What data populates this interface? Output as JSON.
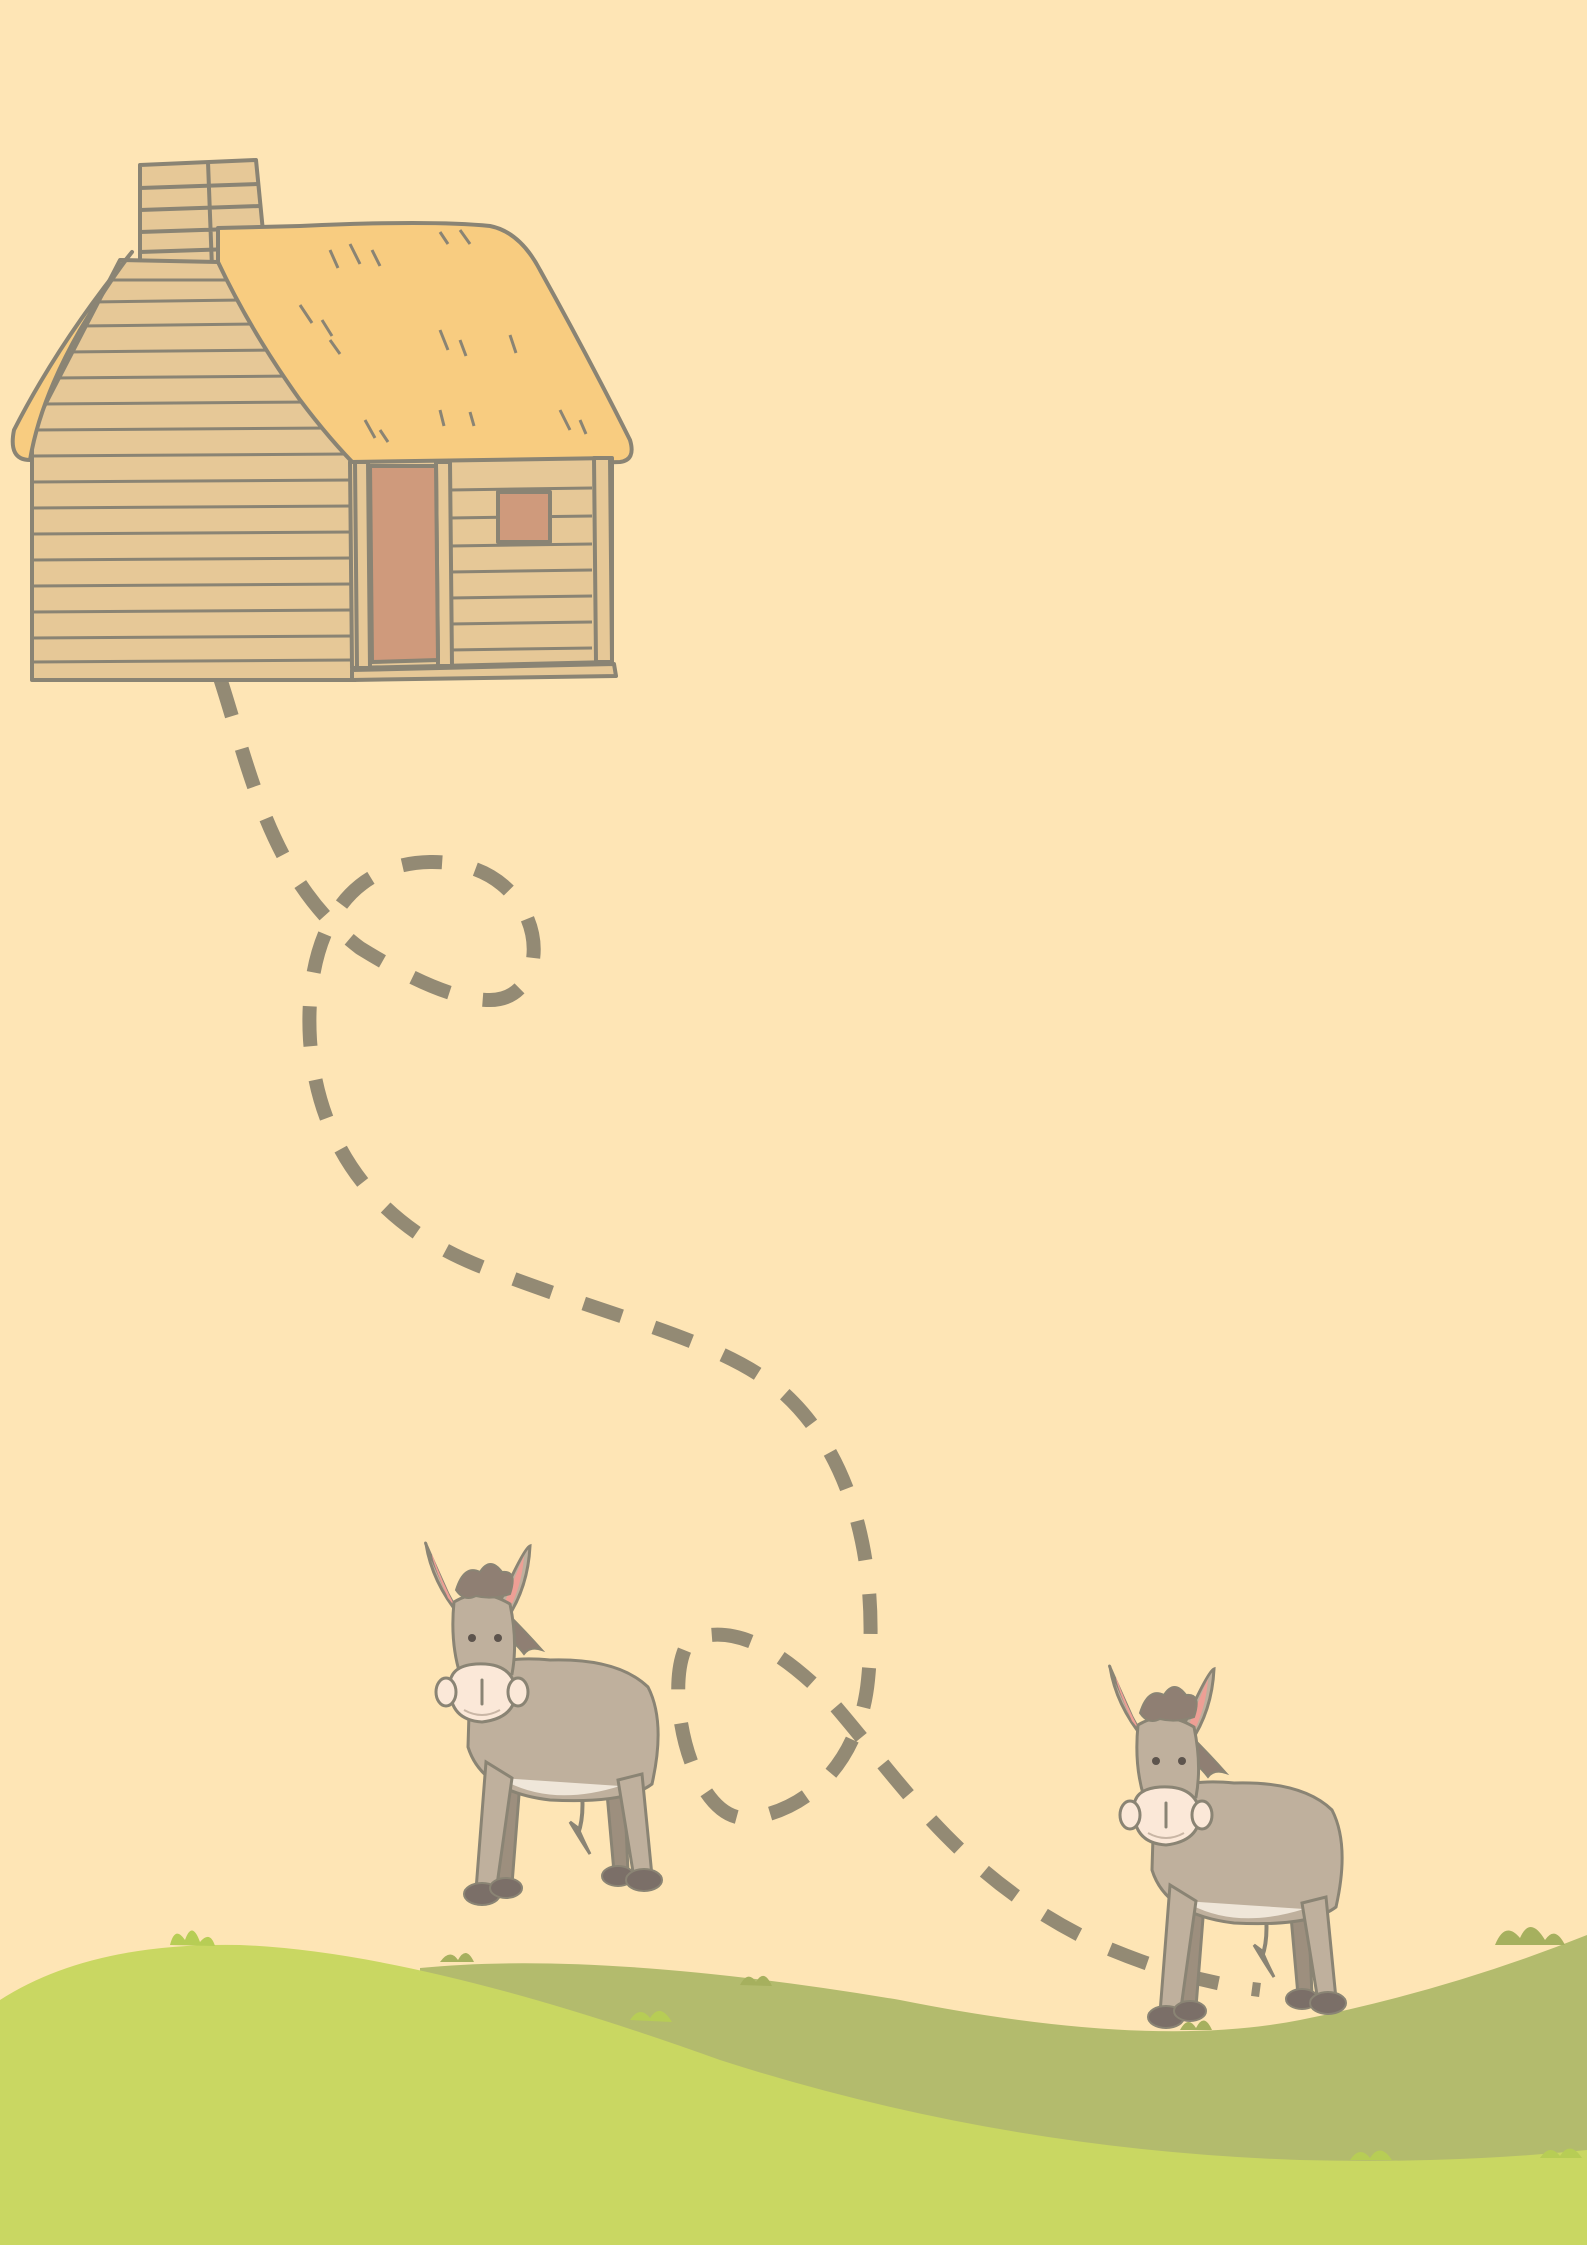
{
  "scene": {
    "colors": {
      "background": "#fee5b5",
      "hill_front": "#c9d762",
      "hill_back": "#b3bb6d",
      "path_dash": "#938a74",
      "outline": "#8a8474",
      "wall": "#e6c897",
      "roof": "#f8cc80",
      "door": "#cf9a7c",
      "window": "#cf9a7c",
      "donkey_body": "#bfb09d",
      "donkey_dark": "#9d8f7e",
      "donkey_mane": "#8f7f73",
      "donkey_muzzle": "#fbe8d8",
      "donkey_ear_inner": "#ee9f95",
      "donkey_hoof": "#7b6f68",
      "grass_tuft": "#b7cd55"
    },
    "objects": {
      "house": "log-cabin-with-thatched-roof",
      "path": "dashed-maze-trail",
      "donkey_a": "donkey-standing",
      "donkey_b": "donkey-standing"
    }
  }
}
